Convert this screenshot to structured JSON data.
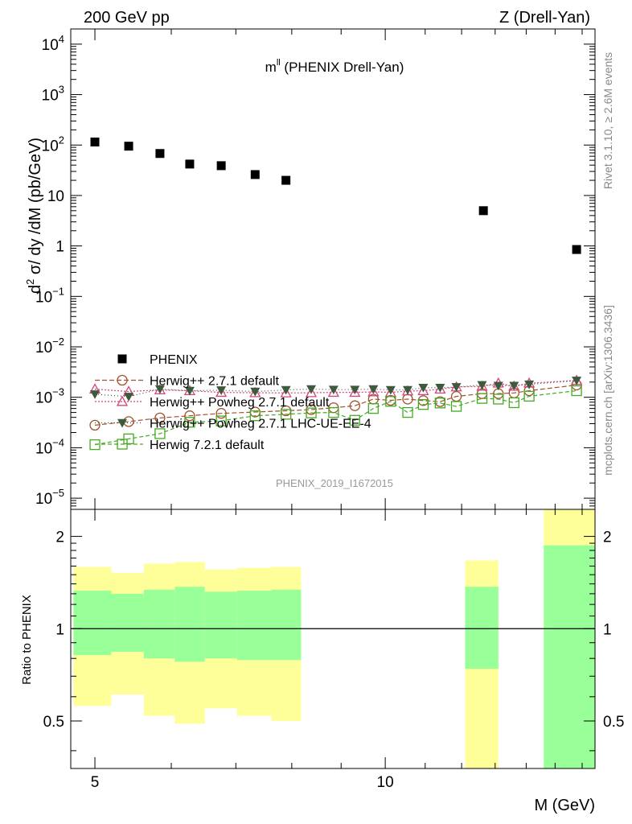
{
  "header": {
    "left": "200 GeV pp",
    "right": "Z (Drell-Yan)"
  },
  "side": {
    "rivet": "Rivet 3.1.10, ≥ 2.6M events",
    "mcplots": "mcplots.cern.ch [arXiv:1306.3436]"
  },
  "watermark": "PHENIX_2019_I1672015",
  "chart_data": [
    {
      "type": "scatter",
      "title": "m^ll (PHENIX Drell-Yan)",
      "ylabel": "d² σ/ dy /dM (pb/GeV)",
      "xlabel": "M (GeV)",
      "yscale": "log",
      "ylim": [
        6e-06,
        20000
      ],
      "xscale": "log",
      "xlim": [
        4.72,
        16.5
      ],
      "y_ticks": [
        {
          "v": 1e-05,
          "base": "10",
          "exp": "−5"
        },
        {
          "v": 0.0001,
          "base": "10",
          "exp": "−4"
        },
        {
          "v": 0.001,
          "base": "10",
          "exp": "−3"
        },
        {
          "v": 0.01,
          "base": "10",
          "exp": "−2"
        },
        {
          "v": 0.1,
          "base": "10",
          "exp": "−1"
        },
        {
          "v": 1,
          "base": "1",
          "exp": ""
        },
        {
          "v": 10,
          "base": "10",
          "exp": ""
        },
        {
          "v": 100,
          "base": "10",
          "exp": "2"
        },
        {
          "v": 1000,
          "base": "10",
          "exp": "3"
        },
        {
          "v": 10000,
          "base": "10",
          "exp": "4"
        }
      ],
      "legend_position": "bottom-left",
      "series": [
        {
          "name": "PHENIX",
          "marker": "filled-square",
          "color": "#000000",
          "x": [
            5.0,
            5.42,
            5.84,
            6.27,
            6.76,
            7.33,
            7.89,
            12.64,
            15.79
          ],
          "y": [
            115,
            95,
            68,
            42,
            39,
            26,
            20,
            5.0,
            0.85
          ]
        },
        {
          "name": "Herwig++ 2.7.1 default",
          "marker": "open-circle",
          "color": "#a0522d",
          "x": [
            5.0,
            5.42,
            5.84,
            6.27,
            6.76,
            7.33,
            7.89,
            8.38,
            8.84,
            9.3,
            9.72,
            10.13,
            10.55,
            10.95,
            11.4,
            11.85,
            12.6,
            13.1,
            13.6,
            14.1,
            15.79
          ],
          "y": [
            0.00028,
            0.00033,
            0.00039,
            0.00043,
            0.00048,
            0.00051,
            0.00054,
            0.00057,
            0.00062,
            0.00068,
            0.00092,
            0.00087,
            0.00092,
            0.00086,
            0.00082,
            0.00104,
            0.00118,
            0.00118,
            0.00122,
            0.00135,
            0.00175
          ]
        },
        {
          "name": "Herwig++ Powheg 2.7.1 default",
          "marker": "open-triangle",
          "color": "#d2467b",
          "x": [
            5.0,
            5.42,
            5.84,
            6.27,
            6.76,
            7.33,
            7.89,
            8.38,
            8.84,
            9.3,
            9.72,
            10.13,
            10.55,
            10.95,
            11.4,
            11.85,
            12.6,
            13.1,
            13.6,
            14.1,
            15.79
          ],
          "y": [
            0.00145,
            0.0013,
            0.0014,
            0.00135,
            0.00125,
            0.00123,
            0.00122,
            0.00123,
            0.00125,
            0.00125,
            0.00128,
            0.00125,
            0.00133,
            0.00135,
            0.00145,
            0.0016,
            0.00165,
            0.0019,
            0.00165,
            0.0019,
            0.00215
          ]
        },
        {
          "name": "Herwig++ Powheg 2.7.1 LHC-UE-EE-4",
          "marker": "filled-triangle-down",
          "color": "#3d5a3d",
          "x": [
            5.0,
            5.42,
            5.84,
            6.27,
            6.76,
            7.33,
            7.89,
            8.38,
            8.84,
            9.3,
            9.72,
            10.13,
            10.55,
            10.95,
            11.4,
            11.85,
            12.6,
            13.1,
            13.6,
            14.1,
            15.79
          ],
          "y": [
            0.00115,
            0.00103,
            0.00145,
            0.00135,
            0.00138,
            0.0013,
            0.0014,
            0.00145,
            0.00142,
            0.00142,
            0.00145,
            0.0014,
            0.0014,
            0.00155,
            0.00155,
            0.0016,
            0.00175,
            0.0017,
            0.0017,
            0.0018,
            0.00215
          ]
        },
        {
          "name": "Herwig 7.2.1 default",
          "marker": "open-square",
          "color": "#44aa22",
          "x": [
            5.0,
            5.42,
            5.84,
            6.27,
            6.76,
            7.33,
            7.89,
            8.38,
            8.84,
            9.3,
            9.72,
            10.13,
            10.55,
            10.95,
            11.4,
            11.85,
            12.6,
            13.1,
            13.6,
            14.1,
            15.79
          ],
          "y": [
            0.000115,
            0.00015,
            0.00019,
            0.00032,
            0.00034,
            0.00043,
            0.00046,
            0.00049,
            0.0005,
            0.00035,
            0.0006,
            0.00083,
            0.0005,
            0.00072,
            0.00077,
            0.00066,
            0.00095,
            0.00092,
            0.00078,
            0.00105,
            0.00135
          ]
        }
      ]
    },
    {
      "type": "area",
      "ylabel": "Ratio to PHENIX",
      "xlabel": "M (GeV)",
      "yscale": "log",
      "ylim": [
        0.35,
        2.45
      ],
      "y_ticks": [
        0.5,
        1,
        2
      ],
      "x_ticks": [
        5,
        10
      ],
      "reference_line": 1,
      "yellow_color": "#ffff99",
      "green_color": "#99ff99",
      "bands": [
        {
          "x0": 4.75,
          "x1": 5.2,
          "y_lo": 0.56,
          "g_lo": 0.82,
          "g_hi": 1.33,
          "y_hi": 1.59
        },
        {
          "x0": 5.2,
          "x1": 5.62,
          "y_lo": 0.61,
          "g_lo": 0.84,
          "g_hi": 1.3,
          "y_hi": 1.52
        },
        {
          "x0": 5.62,
          "x1": 6.05,
          "y_lo": 0.52,
          "g_lo": 0.8,
          "g_hi": 1.34,
          "y_hi": 1.63
        },
        {
          "x0": 6.05,
          "x1": 6.5,
          "y_lo": 0.49,
          "g_lo": 0.78,
          "g_hi": 1.37,
          "y_hi": 1.65
        },
        {
          "x0": 6.5,
          "x1": 7.02,
          "y_lo": 0.55,
          "g_lo": 0.8,
          "g_hi": 1.32,
          "y_hi": 1.56
        },
        {
          "x0": 7.02,
          "x1": 7.62,
          "y_lo": 0.52,
          "g_lo": 0.79,
          "g_hi": 1.33,
          "y_hi": 1.58
        },
        {
          "x0": 7.62,
          "x1": 8.18,
          "y_lo": 0.5,
          "g_lo": 0.79,
          "g_hi": 1.34,
          "y_hi": 1.59
        },
        {
          "x0": 12.1,
          "x1": 13.1,
          "y_lo": 0.1,
          "g_lo": 0.74,
          "g_hi": 1.37,
          "y_hi": 1.67
        },
        {
          "x0": 14.6,
          "x1": 16.5,
          "y_lo": 0.1,
          "g_lo": 0.1,
          "g_hi": 1.87,
          "y_hi": 3.0
        }
      ]
    }
  ]
}
